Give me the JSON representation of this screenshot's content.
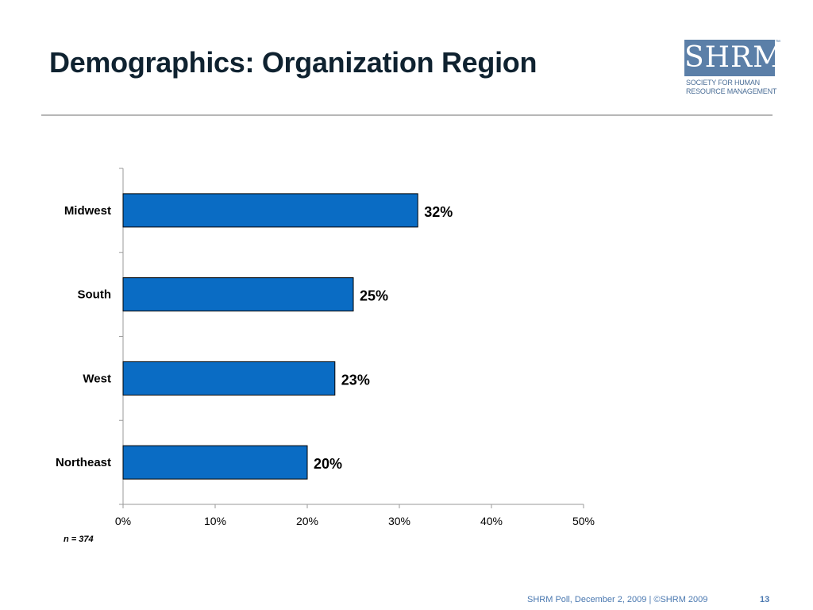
{
  "slide": {
    "title": "Demographics: Organization Region",
    "sample_note": "n = 374",
    "footer": "SHRM Poll, December 2, 2009 | ©SHRM 2009",
    "page_number": "13"
  },
  "logo": {
    "mark": "SHRM",
    "line1": "SOCIETY FOR HUMAN",
    "line2": "RESOURCE MANAGEMENT",
    "color": "#5b7fa8"
  },
  "chart_data": {
    "type": "bar",
    "orientation": "horizontal",
    "categories": [
      "Midwest",
      "South",
      "West",
      "Northeast"
    ],
    "values": [
      32,
      25,
      23,
      20
    ],
    "data_labels": [
      "32%",
      "25%",
      "23%",
      "20%"
    ],
    "xlim": [
      0,
      50
    ],
    "x_ticks": [
      "0%",
      "10%",
      "20%",
      "30%",
      "40%",
      "50%"
    ],
    "bar_color": "#0a6cc4",
    "grid": false,
    "legend": "none"
  }
}
